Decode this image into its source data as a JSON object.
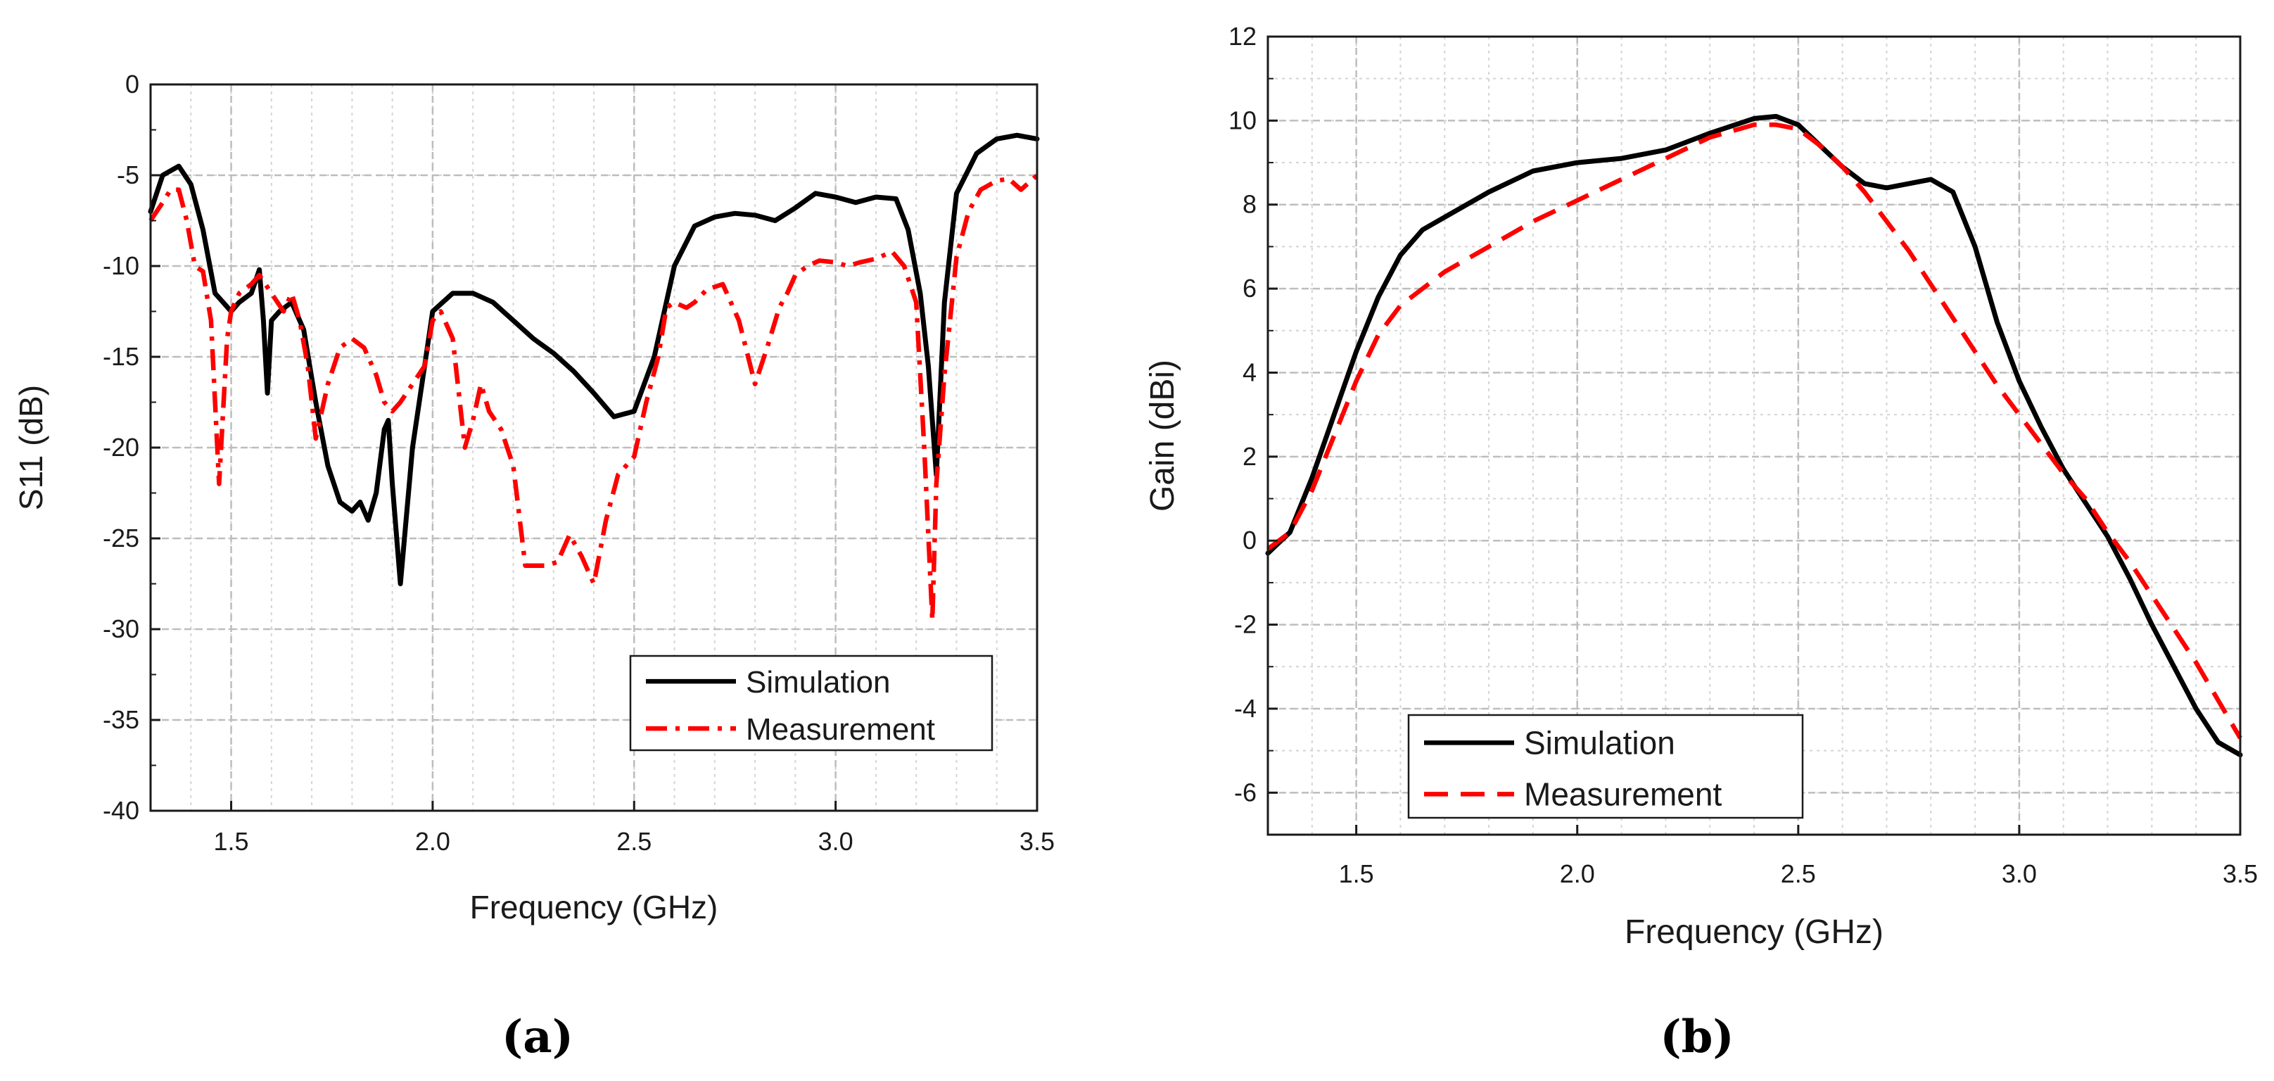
{
  "figure": {
    "captions": [
      "(a)",
      "(b)"
    ]
  },
  "chart_data": [
    {
      "type": "line",
      "panel": "a",
      "title": "",
      "xlabel": "Frequency (GHz)",
      "ylabel": "S11 (dB)",
      "xlim": [
        1.3,
        3.5
      ],
      "ylim": [
        -40,
        0
      ],
      "xticks": [
        1.5,
        2.0,
        2.5,
        3.0,
        3.5
      ],
      "xtick_labels": [
        "1.5",
        "2.0",
        "2.5",
        "3.0",
        "3.5"
      ],
      "yticks": [
        0,
        -5,
        -10,
        -15,
        -20,
        -25,
        -30,
        -35,
        -40
      ],
      "ytick_labels": [
        "0",
        "-5",
        "-10",
        "-15",
        "-20",
        "-25",
        "-30",
        "-35",
        "-40"
      ],
      "grid": true,
      "legend_position": "bottom-right",
      "series": [
        {
          "name": "Simulation",
          "color": "#000000",
          "style": "solid",
          "x": [
            1.3,
            1.33,
            1.37,
            1.4,
            1.43,
            1.46,
            1.48,
            1.5,
            1.52,
            1.55,
            1.57,
            1.58,
            1.59,
            1.6,
            1.62,
            1.65,
            1.68,
            1.71,
            1.74,
            1.77,
            1.8,
            1.82,
            1.84,
            1.86,
            1.88,
            1.89,
            1.9,
            1.92,
            1.95,
            1.98,
            2.0,
            2.05,
            2.1,
            2.15,
            2.2,
            2.25,
            2.3,
            2.35,
            2.4,
            2.45,
            2.5,
            2.55,
            2.6,
            2.65,
            2.7,
            2.75,
            2.8,
            2.85,
            2.9,
            2.95,
            3.0,
            3.05,
            3.1,
            3.15,
            3.18,
            3.21,
            3.23,
            3.25,
            3.27,
            3.3,
            3.35,
            3.4,
            3.45,
            3.5
          ],
          "y": [
            -7.0,
            -5.0,
            -4.5,
            -5.5,
            -8.0,
            -11.5,
            -12.0,
            -12.5,
            -12.0,
            -11.5,
            -10.2,
            -13.0,
            -17.0,
            -13.0,
            -12.5,
            -12.0,
            -13.5,
            -17.5,
            -21.0,
            -23.0,
            -23.5,
            -23.0,
            -24.0,
            -22.5,
            -19.0,
            -18.5,
            -22.0,
            -27.5,
            -20.0,
            -15.5,
            -12.5,
            -11.5,
            -11.5,
            -12.0,
            -13.0,
            -14.0,
            -14.8,
            -15.8,
            -17.0,
            -18.3,
            -18.0,
            -15.0,
            -10.0,
            -7.8,
            -7.3,
            -7.1,
            -7.2,
            -7.5,
            -6.8,
            -6.0,
            -6.2,
            -6.5,
            -6.2,
            -6.3,
            -8.0,
            -11.5,
            -15.5,
            -21.5,
            -12.0,
            -6.0,
            -3.8,
            -3.0,
            -2.8,
            -3.0
          ]
        },
        {
          "name": "Measurement",
          "color": "#ff0000",
          "style": "dashdot",
          "x": [
            1.3,
            1.33,
            1.35,
            1.37,
            1.39,
            1.41,
            1.43,
            1.45,
            1.47,
            1.49,
            1.5,
            1.52,
            1.55,
            1.57,
            1.6,
            1.63,
            1.65,
            1.67,
            1.69,
            1.71,
            1.74,
            1.77,
            1.8,
            1.83,
            1.86,
            1.88,
            1.9,
            1.92,
            1.95,
            1.98,
            2.0,
            2.02,
            2.05,
            2.08,
            2.1,
            2.12,
            2.14,
            2.17,
            2.2,
            2.23,
            2.25,
            2.28,
            2.31,
            2.34,
            2.37,
            2.4,
            2.43,
            2.46,
            2.5,
            2.53,
            2.56,
            2.58,
            2.6,
            2.63,
            2.65,
            2.68,
            2.72,
            2.76,
            2.8,
            2.83,
            2.86,
            2.88,
            2.9,
            2.93,
            2.96,
            3.0,
            3.03,
            3.06,
            3.1,
            3.14,
            3.17,
            3.2,
            3.22,
            3.24,
            3.25,
            3.27,
            3.3,
            3.33,
            3.36,
            3.4,
            3.43,
            3.46,
            3.5
          ],
          "y": [
            -7.5,
            -6.5,
            -5.8,
            -5.8,
            -7.5,
            -10.0,
            -10.3,
            -13.0,
            -22.0,
            -14.0,
            -12.5,
            -11.5,
            -11.0,
            -10.5,
            -11.5,
            -12.5,
            -11.5,
            -13.0,
            -15.5,
            -19.5,
            -16.5,
            -14.5,
            -14.0,
            -14.5,
            -16.0,
            -17.5,
            -18.0,
            -17.5,
            -16.5,
            -15.5,
            -13.0,
            -12.5,
            -14.0,
            -20.0,
            -18.5,
            -16.5,
            -18.0,
            -19.0,
            -21.0,
            -26.5,
            -26.5,
            -26.5,
            -26.3,
            -24.8,
            -26.0,
            -27.5,
            -24.0,
            -21.5,
            -20.5,
            -17.5,
            -15.0,
            -12.3,
            -12.0,
            -12.3,
            -12.0,
            -11.3,
            -11.0,
            -13.0,
            -16.5,
            -14.5,
            -12.3,
            -11.5,
            -10.5,
            -10.0,
            -9.7,
            -9.8,
            -10.0,
            -9.8,
            -9.6,
            -9.2,
            -10.0,
            -12.0,
            -20.0,
            -29.5,
            -22.0,
            -16.0,
            -9.5,
            -7.0,
            -5.8,
            -5.3,
            -5.2,
            -5.8,
            -5.0
          ]
        }
      ]
    },
    {
      "type": "line",
      "panel": "b",
      "title": "",
      "xlabel": "Frequency (GHz)",
      "ylabel": "Gain (dBi)",
      "xlim": [
        1.3,
        3.5
      ],
      "ylim": [
        -7,
        12
      ],
      "xticks": [
        1.5,
        2.0,
        2.5,
        3.0,
        3.5
      ],
      "xtick_labels": [
        "1.5",
        "2.0",
        "2.5",
        "3.0",
        "3.5"
      ],
      "yticks": [
        12,
        10,
        8,
        6,
        4,
        2,
        0,
        -2,
        -4,
        -6
      ],
      "ytick_labels": [
        "12",
        "10",
        "8",
        "6",
        "4",
        "2",
        "0",
        "-2",
        "-4",
        "-6"
      ],
      "grid": true,
      "legend_position": "bottom-left",
      "series": [
        {
          "name": "Simulation",
          "color": "#000000",
          "style": "solid",
          "x": [
            1.3,
            1.35,
            1.4,
            1.45,
            1.5,
            1.55,
            1.6,
            1.65,
            1.7,
            1.8,
            1.9,
            2.0,
            2.1,
            2.2,
            2.3,
            2.4,
            2.45,
            2.5,
            2.55,
            2.6,
            2.65,
            2.7,
            2.75,
            2.8,
            2.85,
            2.9,
            2.95,
            3.0,
            3.05,
            3.1,
            3.15,
            3.2,
            3.25,
            3.3,
            3.35,
            3.4,
            3.45,
            3.5
          ],
          "y": [
            -0.3,
            0.2,
            1.5,
            3.0,
            4.5,
            5.8,
            6.8,
            7.4,
            7.7,
            8.3,
            8.8,
            9.0,
            9.1,
            9.3,
            9.7,
            10.05,
            10.1,
            9.9,
            9.4,
            8.9,
            8.5,
            8.4,
            8.5,
            8.6,
            8.3,
            7.0,
            5.2,
            3.8,
            2.7,
            1.7,
            0.9,
            0.1,
            -0.9,
            -2.0,
            -3.0,
            -4.0,
            -4.8,
            -5.1
          ]
        },
        {
          "name": "Measurement",
          "color": "#ff0000",
          "style": "dashed",
          "x": [
            1.3,
            1.35,
            1.4,
            1.45,
            1.5,
            1.55,
            1.6,
            1.7,
            1.8,
            1.9,
            2.0,
            2.1,
            2.2,
            2.3,
            2.4,
            2.45,
            2.5,
            2.55,
            2.6,
            2.65,
            2.7,
            2.75,
            2.8,
            2.85,
            2.9,
            2.95,
            3.0,
            3.05,
            3.1,
            3.15,
            3.2,
            3.25,
            3.3,
            3.35,
            3.4,
            3.45,
            3.5
          ],
          "y": [
            -0.2,
            0.2,
            1.2,
            2.5,
            3.8,
            4.9,
            5.6,
            6.4,
            7.0,
            7.6,
            8.1,
            8.6,
            9.1,
            9.6,
            9.9,
            9.9,
            9.8,
            9.4,
            8.9,
            8.3,
            7.6,
            6.9,
            6.1,
            5.3,
            4.5,
            3.7,
            3.0,
            2.3,
            1.6,
            1.0,
            0.2,
            -0.5,
            -1.3,
            -2.1,
            -2.9,
            -3.8,
            -4.7
          ]
        }
      ]
    }
  ]
}
